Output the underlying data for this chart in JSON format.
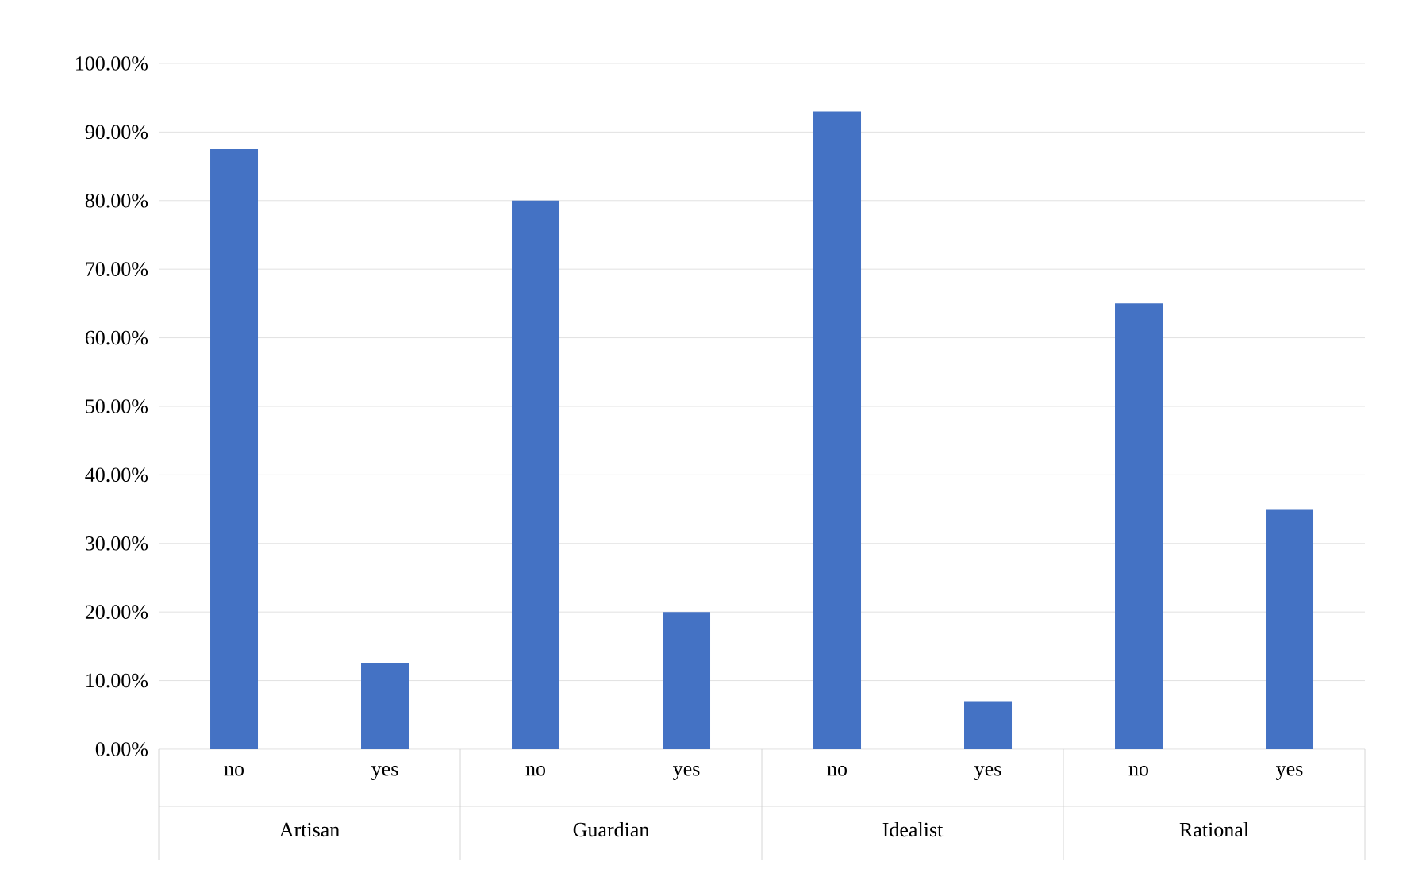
{
  "chart_data": {
    "type": "bar",
    "categories": [
      "no",
      "yes",
      "no",
      "yes",
      "no",
      "yes",
      "no",
      "yes"
    ],
    "values": [
      87.5,
      12.5,
      80,
      20,
      93,
      7,
      65,
      35
    ],
    "color": "#4472c4",
    "ylim": [
      0,
      100
    ],
    "yticks": [
      {
        "value": 0,
        "label": "0.00%"
      },
      {
        "value": 10,
        "label": "10.00%"
      },
      {
        "value": 20,
        "label": "20.00%"
      },
      {
        "value": 30,
        "label": "30.00%"
      },
      {
        "value": 40,
        "label": "40.00%"
      },
      {
        "value": 50,
        "label": "50.00%"
      },
      {
        "value": 60,
        "label": "60.00%"
      },
      {
        "value": 70,
        "label": "70.00%"
      },
      {
        "value": 80,
        "label": "80.00%"
      },
      {
        "value": 90,
        "label": "90.00%"
      },
      {
        "value": 100,
        "label": "100.00%"
      }
    ],
    "grid": "y",
    "annotations": [
      "Artisan",
      "Guardian",
      "Idealist",
      "Rational"
    ]
  }
}
